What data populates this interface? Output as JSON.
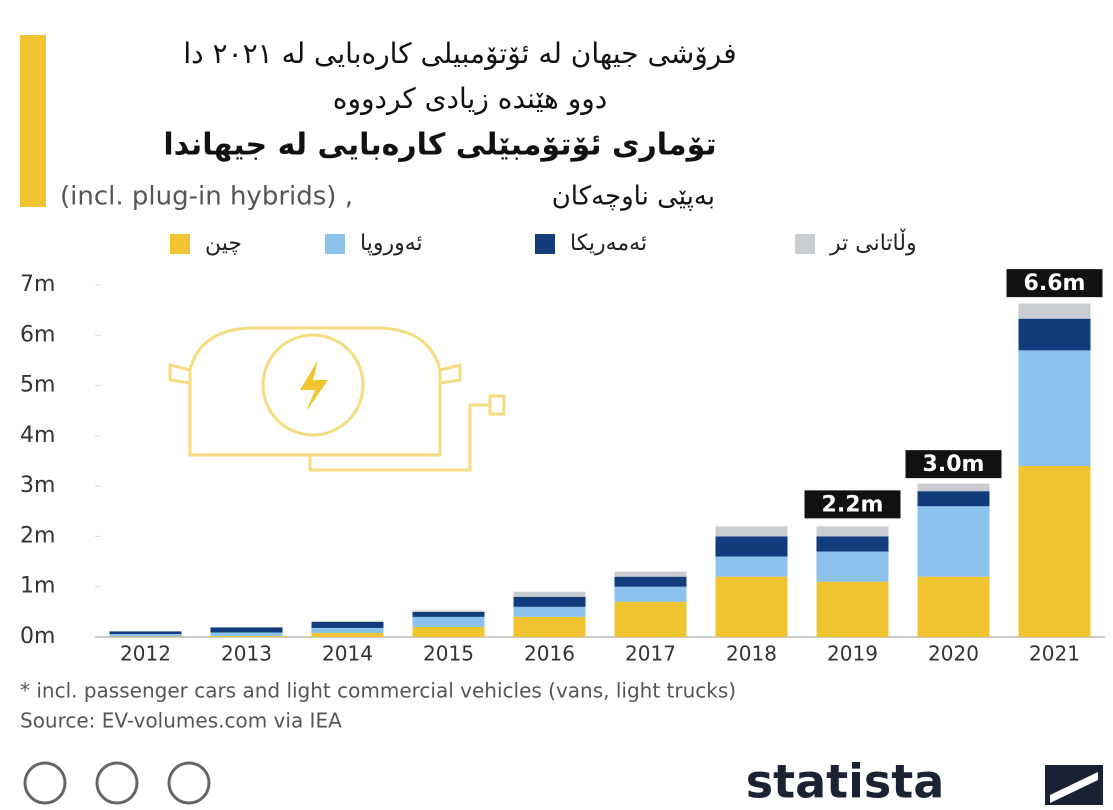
{
  "chart_data": {
    "type": "stacked_bar",
    "title": "فرۆشی جیهان لە ئۆتۆمبیلی کارەبایی لە ٢٠٢١ دا",
    "title_line2": "دوو هێندە زیادی کردووە",
    "subtitle": "تۆماری ئۆتۆمبێلی کارەبایی لە جیهاندا",
    "subtitle_en": "(incl. plug-in hybrids) ,",
    "subtitle_line2": "بەپێی ناوچەکان",
    "categories": [
      "2012",
      "2013",
      "2014",
      "2015",
      "2016",
      "2017",
      "2018",
      "2019",
      "2020",
      "2021"
    ],
    "series": [
      {
        "name": "چین",
        "color": "#f0c330",
        "values": [
          0.01,
          0.02,
          0.08,
          0.2,
          0.4,
          0.7,
          1.2,
          1.1,
          1.2,
          3.4
        ]
      },
      {
        "name": "ئەوروپا",
        "color": "#8cc3ec",
        "values": [
          0.05,
          0.07,
          0.1,
          0.2,
          0.2,
          0.3,
          0.4,
          0.6,
          1.4,
          2.3
        ]
      },
      {
        "name": "ئەمەریکا",
        "color": "#123c7c",
        "values": [
          0.05,
          0.1,
          0.12,
          0.1,
          0.2,
          0.2,
          0.4,
          0.3,
          0.3,
          0.63
        ]
      },
      {
        "name": "وڵاتانی تر",
        "color": "#c9ccd0",
        "values": [
          0.01,
          0.01,
          0.02,
          0.03,
          0.1,
          0.1,
          0.2,
          0.2,
          0.15,
          0.3
        ]
      }
    ],
    "annotations": [
      {
        "category": "2019",
        "value": 2.2,
        "label": "2.2m"
      },
      {
        "category": "2020",
        "value": 3.0,
        "label": "3.0m"
      },
      {
        "category": "2021",
        "value": 6.6,
        "label": "6.6m"
      }
    ],
    "ylim": [
      0,
      7
    ],
    "yticks": [
      {
        "value": 0,
        "label": "0m"
      },
      {
        "value": 1,
        "label": "1m"
      },
      {
        "value": 2,
        "label": "2m"
      },
      {
        "value": 3,
        "label": "3m"
      },
      {
        "value": 4,
        "label": "4m"
      },
      {
        "value": 5,
        "label": "5m"
      },
      {
        "value": 6,
        "label": "6m"
      },
      {
        "value": 7,
        "label": "7m"
      }
    ],
    "grid": false,
    "note": "* incl. passenger cars and light commercial vehicles (vans, light trucks)",
    "source": "Source: EV-volumes.com via IEA",
    "brand": "statista"
  }
}
